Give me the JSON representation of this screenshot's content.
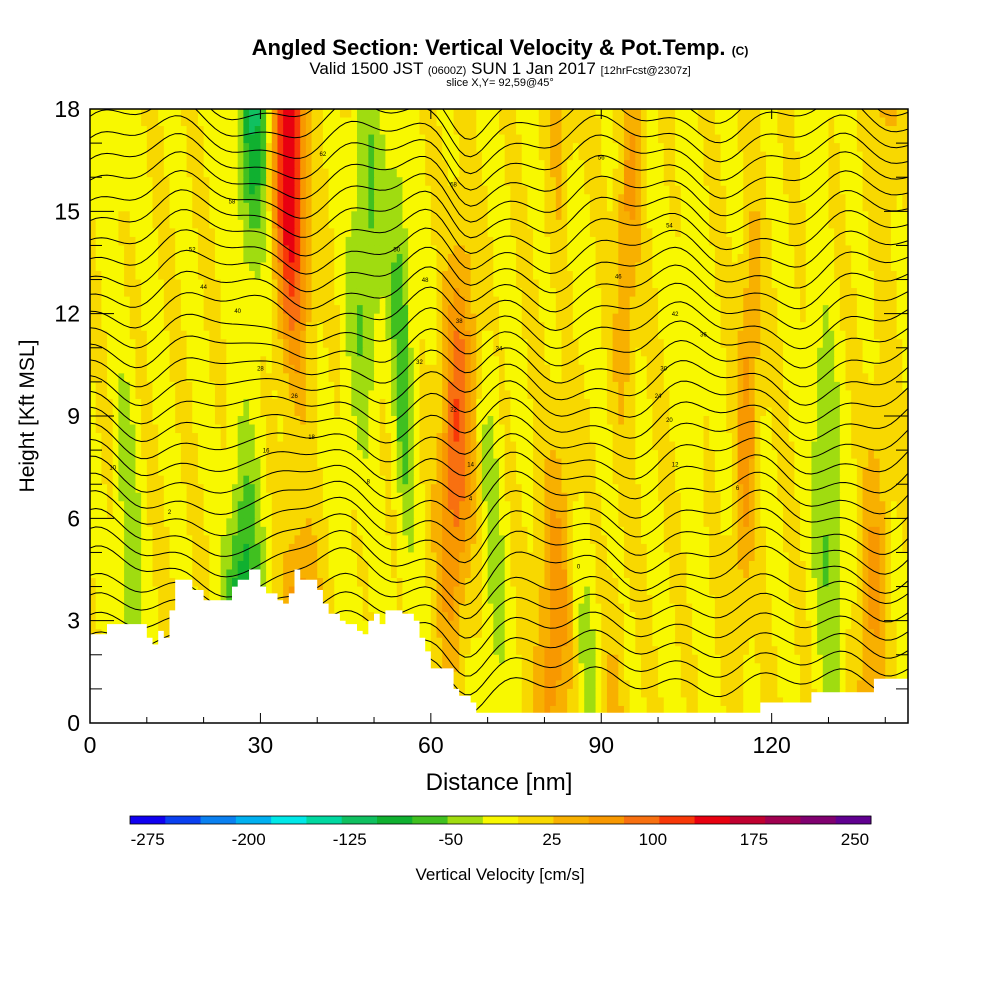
{
  "title": {
    "main": "Angled Section: Vertical Velocity & Pot.Temp.",
    "units": "(C)"
  },
  "subtitle": {
    "prefix": "Valid 1500 JST",
    "zulu": "(0600Z)",
    "date": "SUN 1 Jan 2017",
    "forecast": "[12hrFcst@2307z]"
  },
  "slice_label": "slice X,Y= 92,59@45°",
  "colors": {
    "terrain": "#ffffff",
    "contour": "#000000",
    "palette": [
      "#1000f0",
      "#0a40f0",
      "#0a80f0",
      "#00b0f0",
      "#00e8e8",
      "#00d8a0",
      "#10c060",
      "#10b030",
      "#40c020",
      "#a0dc10",
      "#f8f800",
      "#f8d800",
      "#f8b000",
      "#f89800",
      "#f87010",
      "#f83808",
      "#e80010",
      "#c00030",
      "#a00050",
      "#800070",
      "#600090"
    ]
  },
  "chart_data": {
    "type": "heatmap",
    "xlabel": "Distance [nm]",
    "ylabel": "Height [Kft MSL]",
    "xlim": [
      0,
      144
    ],
    "ylim": [
      0,
      18
    ],
    "xticks": [
      0,
      30,
      60,
      90,
      120
    ],
    "yticks": [
      0,
      3,
      6,
      9,
      12,
      15,
      18
    ],
    "colorbar": {
      "label": "Vertical Velocity [cm/s]",
      "tick_labels": [
        "-275",
        "-200",
        "-125",
        "-50",
        "25",
        "100",
        "175",
        "250"
      ],
      "tick_values": [
        -275,
        -200,
        -125,
        -50,
        25,
        100,
        175,
        250
      ]
    },
    "vertical_velocity_bands": [
      {
        "x": 7,
        "w": 2,
        "value": -50
      },
      {
        "x": 27,
        "w": 3,
        "value": -125
      },
      {
        "x": 37,
        "w": 3,
        "value": 175
      },
      {
        "x": 47,
        "w": 3,
        "value": -60
      },
      {
        "x": 56,
        "w": 1.8,
        "value": -75
      },
      {
        "x": 64,
        "w": 3,
        "value": 110
      },
      {
        "x": 71,
        "w": 2,
        "value": -40
      },
      {
        "x": 82,
        "w": 3,
        "value": 75
      },
      {
        "x": 87,
        "w": 2,
        "value": -40
      },
      {
        "x": 93,
        "w": 2,
        "value": 60
      },
      {
        "x": 107,
        "w": 2,
        "value": -20
      },
      {
        "x": 115,
        "w": 2,
        "value": 70
      },
      {
        "x": 130,
        "w": 2.5,
        "value": -60
      },
      {
        "x": 138,
        "w": 2.5,
        "value": 60
      }
    ],
    "terrain": {
      "x": [
        0,
        2,
        3,
        9,
        10,
        11,
        12,
        13,
        14,
        15,
        18,
        20,
        21,
        25,
        26,
        28,
        30,
        31,
        33,
        34,
        35,
        36,
        37,
        40,
        41,
        42,
        44,
        45,
        47,
        48,
        49,
        50,
        51,
        52,
        53,
        55,
        57,
        58,
        59,
        60,
        63,
        64,
        65,
        67,
        68,
        69,
        70,
        80,
        95,
        100,
        114,
        115,
        118,
        119,
        126,
        127,
        137,
        138,
        144
      ],
      "y": [
        2.6,
        2.6,
        2.9,
        2.9,
        2.5,
        2.3,
        2.7,
        2.5,
        3.3,
        4.2,
        3.9,
        3.6,
        3.6,
        4.0,
        4.2,
        4.5,
        4.0,
        3.8,
        3.6,
        3.5,
        3.8,
        4.5,
        4.2,
        3.9,
        3.5,
        3.2,
        3.0,
        2.9,
        2.7,
        2.6,
        3.0,
        3.2,
        2.9,
        3.3,
        3.3,
        3.2,
        3.0,
        2.5,
        2.1,
        1.6,
        1.6,
        1.0,
        0.8,
        0.6,
        0.3,
        0.3,
        0.3,
        0.3,
        0.3,
        0.3,
        0.3,
        0.3,
        0.6,
        0.6,
        0.6,
        0.9,
        0.9,
        1.3,
        1.3
      ]
    },
    "contour_labels": [
      {
        "x": 41,
        "y": 16.7,
        "text": "62"
      },
      {
        "x": 25,
        "y": 15.3,
        "text": "58"
      },
      {
        "x": 64,
        "y": 15.8,
        "text": "58"
      },
      {
        "x": 90,
        "y": 16.6,
        "text": "56"
      },
      {
        "x": 102,
        "y": 14.6,
        "text": "54"
      },
      {
        "x": 18,
        "y": 13.9,
        "text": "52"
      },
      {
        "x": 54,
        "y": 13.9,
        "text": "50"
      },
      {
        "x": 59,
        "y": 13.0,
        "text": "48"
      },
      {
        "x": 93,
        "y": 13.1,
        "text": "46"
      },
      {
        "x": 20,
        "y": 12.8,
        "text": "44"
      },
      {
        "x": 103,
        "y": 12.0,
        "text": "42"
      },
      {
        "x": 26,
        "y": 12.1,
        "text": "40"
      },
      {
        "x": 65,
        "y": 11.8,
        "text": "38"
      },
      {
        "x": 108,
        "y": 11.4,
        "text": "36"
      },
      {
        "x": 72,
        "y": 11.0,
        "text": "34"
      },
      {
        "x": 58,
        "y": 10.6,
        "text": "32"
      },
      {
        "x": 101,
        "y": 10.4,
        "text": "30"
      },
      {
        "x": 30,
        "y": 10.4,
        "text": "28"
      },
      {
        "x": 36,
        "y": 9.6,
        "text": "26"
      },
      {
        "x": 100,
        "y": 9.6,
        "text": "24"
      },
      {
        "x": 64,
        "y": 9.2,
        "text": "22"
      },
      {
        "x": 102,
        "y": 8.9,
        "text": "20"
      },
      {
        "x": 39,
        "y": 8.4,
        "text": "18"
      },
      {
        "x": 31,
        "y": 8.0,
        "text": "16"
      },
      {
        "x": 67,
        "y": 7.6,
        "text": "14"
      },
      {
        "x": 103,
        "y": 7.6,
        "text": "12"
      },
      {
        "x": 4,
        "y": 7.5,
        "text": "10"
      },
      {
        "x": 49,
        "y": 7.1,
        "text": "8"
      },
      {
        "x": 114,
        "y": 6.9,
        "text": "6"
      },
      {
        "x": 67,
        "y": 6.6,
        "text": "4"
      },
      {
        "x": 14,
        "y": 6.2,
        "text": "2"
      },
      {
        "x": 86,
        "y": 4.6,
        "text": "0"
      }
    ]
  }
}
